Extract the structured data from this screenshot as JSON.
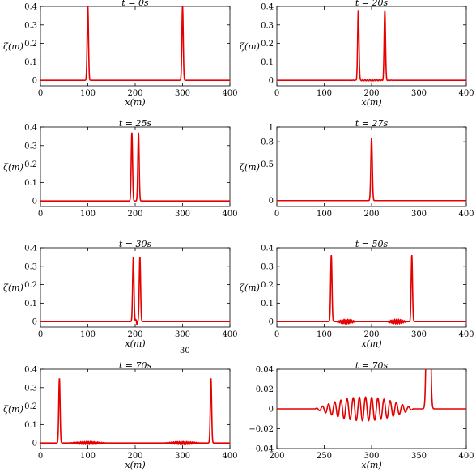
{
  "figure_note": "30",
  "chart_data": [
    {
      "type": "line",
      "title": "t = 0s",
      "xlabel": "x(m)",
      "ylabel": "ζ(m)",
      "xlim": [
        0,
        400
      ],
      "ylim": [
        -0.03,
        0.4
      ],
      "xticks": [
        0,
        100,
        200,
        300,
        400
      ],
      "yticks": [
        0,
        0.1,
        0.2,
        0.3,
        0.4
      ],
      "yticklabels": [
        "0",
        "0.1",
        "0.2",
        "0.3",
        "0.4"
      ],
      "color": "#e60000",
      "series": [
        {
          "peaks": [
            {
              "x": 100,
              "height": 0.4,
              "width": 2
            },
            {
              "x": 300,
              "height": 0.4,
              "width": 2
            }
          ],
          "ripples": []
        }
      ]
    },
    {
      "type": "line",
      "title": "t = 20s",
      "xlabel": "x(m)",
      "ylabel": "ζ(m)",
      "xlim": [
        0,
        400
      ],
      "ylim": [
        -0.03,
        0.4
      ],
      "xticks": [
        0,
        100,
        200,
        300,
        400
      ],
      "yticks": [
        0,
        0.1,
        0.2,
        0.3,
        0.4
      ],
      "yticklabels": [
        "0",
        "0.1",
        "0.2",
        "0.3",
        "0.4"
      ],
      "color": "#e60000",
      "series": [
        {
          "peaks": [
            {
              "x": 172,
              "height": 0.38,
              "width": 2
            },
            {
              "x": 228,
              "height": 0.38,
              "width": 2
            }
          ],
          "ripples": [
            {
              "x0": 150,
              "x1": 250,
              "amplitude": 0.003,
              "wavelength": 5
            }
          ]
        }
      ]
    },
    {
      "type": "line",
      "title": "t = 25s",
      "xlabel": "",
      "ylabel": "ζ(m)",
      "xlim": [
        0,
        400
      ],
      "ylim": [
        -0.03,
        0.4
      ],
      "xticks": [
        0,
        100,
        200,
        300,
        400
      ],
      "yticks": [
        0,
        0.1,
        0.2,
        0.3,
        0.4
      ],
      "yticklabels": [
        "0",
        "0.1",
        "0.2",
        "0.3",
        "0.4"
      ],
      "color": "#e60000",
      "series": [
        {
          "peaks": [
            {
              "x": 193,
              "height": 0.37,
              "width": 2
            },
            {
              "x": 207,
              "height": 0.37,
              "width": 2
            }
          ],
          "ripples": []
        }
      ]
    },
    {
      "type": "line",
      "title": "t = 27s",
      "xlabel": "",
      "ylabel": "ζ(m)",
      "xlim": [
        0,
        400
      ],
      "ylim": [
        -0.08,
        1.0
      ],
      "xticks": [
        0,
        100,
        200,
        300,
        400
      ],
      "yticks": [
        0,
        0.5,
        0.8,
        1
      ],
      "yticklabels": [
        "0",
        "0.5",
        "0.8",
        "1"
      ],
      "color": "#e60000",
      "series": [
        {
          "peaks": [
            {
              "x": 200,
              "height": 0.85,
              "width": 2.2
            }
          ],
          "ripples": []
        }
      ]
    },
    {
      "type": "line",
      "title": "t = 30s",
      "xlabel": "x(m)",
      "ylabel": "ζ(m)",
      "xlim": [
        0,
        400
      ],
      "ylim": [
        -0.03,
        0.4
      ],
      "xticks": [
        0,
        100,
        200,
        300,
        400
      ],
      "yticks": [
        0,
        0.1,
        0.2,
        0.3,
        0.4
      ],
      "yticklabels": [
        "0",
        "0.1",
        "0.2",
        "0.3",
        "0.4"
      ],
      "color": "#e60000",
      "series": [
        {
          "peaks": [
            {
              "x": 196,
              "height": 0.35,
              "width": 2
            },
            {
              "x": 210,
              "height": 0.35,
              "width": 2
            }
          ],
          "ripples": [
            {
              "x0": 200,
              "x1": 206,
              "amplitude": 0.015,
              "wavelength": 5
            }
          ]
        }
      ]
    },
    {
      "type": "line",
      "title": "t = 50s",
      "xlabel": "x(m)",
      "ylabel": "ζ(m)",
      "xlim": [
        0,
        400
      ],
      "ylim": [
        -0.03,
        0.4
      ],
      "xticks": [
        0,
        100,
        200,
        300,
        400
      ],
      "yticks": [
        0,
        0.1,
        0.2,
        0.3,
        0.4
      ],
      "yticklabels": [
        "0",
        "0.1",
        "0.2",
        "0.3",
        "0.4"
      ],
      "color": "#e60000",
      "series": [
        {
          "peaks": [
            {
              "x": 115,
              "height": 0.36,
              "width": 2
            },
            {
              "x": 285,
              "height": 0.36,
              "width": 2
            }
          ],
          "ripples": [
            {
              "x0": 125,
              "x1": 168,
              "amplitude": 0.012,
              "wavelength": 4
            },
            {
              "x0": 232,
              "x1": 275,
              "amplitude": 0.012,
              "wavelength": 4
            }
          ]
        }
      ]
    },
    {
      "type": "line",
      "title": "t = 70s",
      "xlabel": "x(m)",
      "ylabel": "ζ(m)",
      "xlim": [
        0,
        400
      ],
      "ylim": [
        -0.03,
        0.4
      ],
      "xticks": [
        0,
        100,
        200,
        300,
        400
      ],
      "yticks": [
        0,
        0.1,
        0.2,
        0.3,
        0.4
      ],
      "yticklabels": [
        "0",
        "0.1",
        "0.2",
        "0.3",
        "0.4"
      ],
      "color": "#e60000",
      "series": [
        {
          "peaks": [
            {
              "x": 40,
              "height": 0.35,
              "width": 2
            },
            {
              "x": 360,
              "height": 0.35,
              "width": 2
            }
          ],
          "ripples": [
            {
              "x0": 60,
              "x1": 140,
              "amplitude": 0.008,
              "wavelength": 4
            },
            {
              "x0": 260,
              "x1": 340,
              "amplitude": 0.008,
              "wavelength": 4
            }
          ]
        }
      ]
    },
    {
      "type": "line",
      "title": "t = 70s",
      "xlabel": "x(m)",
      "ylabel": "",
      "xlim": [
        200,
        400
      ],
      "ylim": [
        -0.04,
        0.04
      ],
      "xticks": [
        200,
        250,
        300,
        350,
        400
      ],
      "yticks": [
        -0.04,
        -0.02,
        0,
        0.02,
        0.04
      ],
      "yticklabels": [
        "−0.04",
        "−0.02",
        "0",
        "0.02",
        "0.04"
      ],
      "color": "#e60000",
      "series": [
        {
          "peaks": [
            {
              "x": 360,
              "height": 0.35,
              "width": 2
            }
          ],
          "ripples": [
            {
              "x0": 240,
              "x1": 345,
              "amplitude": 0.012,
              "wavelength": 6.5
            }
          ]
        }
      ]
    }
  ]
}
